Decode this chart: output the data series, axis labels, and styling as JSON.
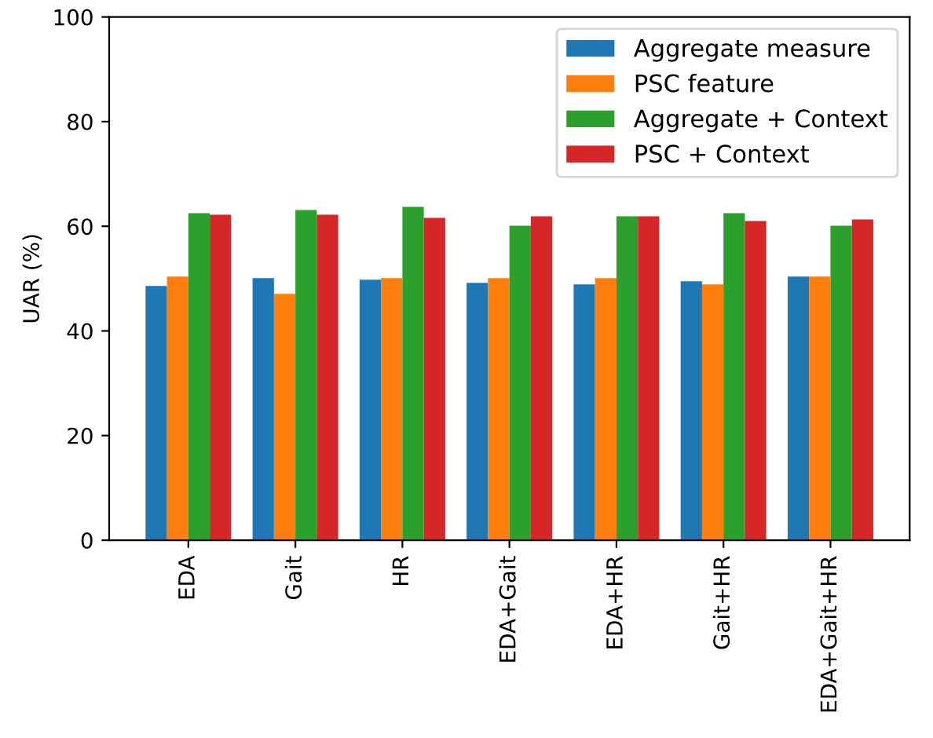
{
  "chart_data": {
    "type": "bar",
    "ylabel": "UAR (%)",
    "categories": [
      "EDA",
      "Gait",
      "HR",
      "EDA+Gait",
      "EDA+HR",
      "Gait+HR",
      "EDA+Gait+HR"
    ],
    "series": [
      {
        "name": "Aggregate measure",
        "color": "#1f77b4",
        "values": [
          48.6,
          50.1,
          49.8,
          49.2,
          48.9,
          49.5,
          50.4
        ]
      },
      {
        "name": "PSC feature",
        "color": "#ff7f0e",
        "values": [
          50.4,
          47.1,
          50.1,
          50.1,
          50.1,
          48.9,
          50.4
        ]
      },
      {
        "name": "Aggregate + Context",
        "color": "#2ca02c",
        "values": [
          62.5,
          63.1,
          63.7,
          60.1,
          61.9,
          62.5,
          60.1
        ]
      },
      {
        "name": "PSC + Context",
        "color": "#d62728",
        "values": [
          62.2,
          62.2,
          61.6,
          61.9,
          61.9,
          61.0,
          61.3
        ]
      }
    ],
    "ylim": [
      0,
      100
    ],
    "yticks": [
      0,
      20,
      40,
      60,
      80,
      100
    ],
    "legend": "top right",
    "grid": false
  }
}
